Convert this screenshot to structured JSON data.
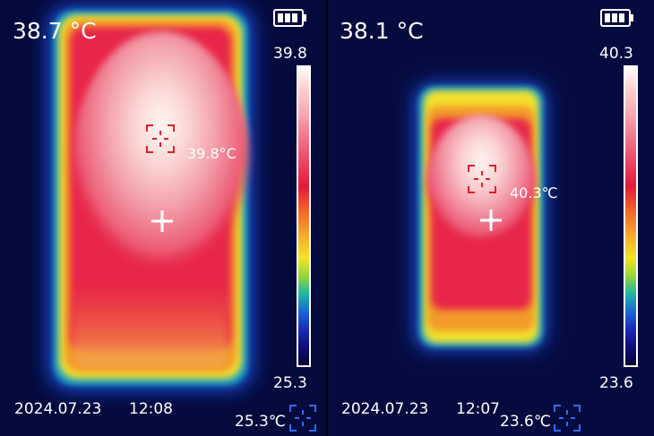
{
  "panels": [
    {
      "center_temp": "38.7 °C",
      "scale_max": "39.8",
      "scale_min": "25.3",
      "hot_spot_temp": "39.8°C",
      "min_temp": "25.3℃",
      "date": "2024.07.23",
      "time": "12:08"
    },
    {
      "center_temp": "38.1 °C",
      "scale_max": "40.3",
      "scale_min": "23.6",
      "hot_spot_temp": "40.3℃",
      "min_temp": "23.6℃",
      "date": "2024.07.23",
      "time": "12:07"
    }
  ],
  "icons": {
    "battery": "battery-icon",
    "hot_marker": "hot-spot-marker-icon",
    "crosshair": "center-crosshair-icon",
    "cold_marker": "cold-spot-marker-icon"
  },
  "colors": {
    "hot_marker": "#e0202a",
    "cold_marker": "#2f6cff",
    "background": "#050a3d"
  }
}
